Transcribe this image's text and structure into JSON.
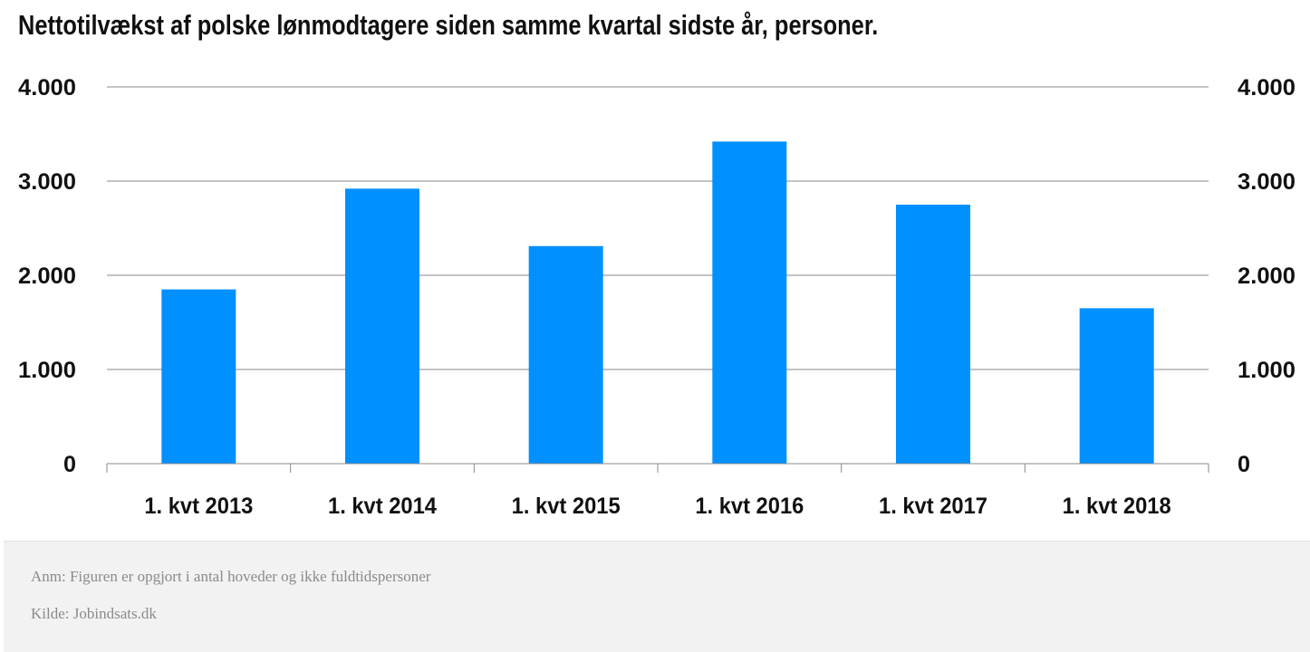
{
  "chart_data": {
    "type": "bar",
    "title": "Nettotilvækst af polske lønmodtagere siden samme kvartal sidste år, personer.",
    "xlabel": "",
    "ylabel": "",
    "categories": [
      "1. kvt 2013",
      "1. kvt 2014",
      "1. kvt 2015",
      "1. kvt 2016",
      "1. kvt 2017",
      "1. kvt 2018"
    ],
    "values": [
      1850,
      2920,
      2310,
      3420,
      2750,
      1650
    ],
    "ylim": [
      0,
      4000
    ],
    "yticks": [
      0,
      1000,
      2000,
      3000,
      4000
    ],
    "ytick_labels": [
      "0",
      "1.000",
      "2.000",
      "3.000",
      "4.000"
    ],
    "secondary_axis": "right",
    "grid": true,
    "legend": "none",
    "bar_color": "#0090ff",
    "grid_color": "#888888"
  },
  "footer": {
    "note": "Anm: Figuren er opgjort i antal hoveder og ikke fuldtidspersoner",
    "source": "Kilde: Jobindsats.dk"
  }
}
